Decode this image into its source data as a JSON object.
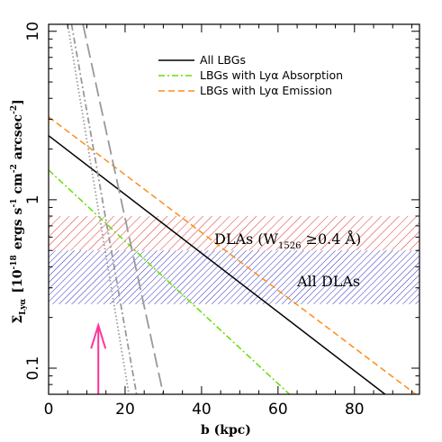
{
  "chart_data": {
    "type": "line",
    "xlabel": "b (kpc)",
    "ylabel": "Σ_Lyα [10⁻¹⁸ ergs s⁻¹ cm⁻² arcsec⁻²]",
    "ylabel_main": "[10",
    "ylabel_exp": "-18",
    "ylabel_units": "ergs s",
    "ylabel_units_exp": "-1",
    "ylabel_cm": "cm",
    "ylabel_cm_exp": "-2",
    "ylabel_arcsec": "arcsec",
    "ylabel_arcsec_exp": "-2",
    "ylabel_close": "]",
    "ylabel_sigma": "Σ",
    "ylabel_sub": "Lyα",
    "xlim": [
      0,
      97
    ],
    "ylim": [
      0.07,
      11
    ],
    "yscale": "log",
    "x_ticks": [
      0,
      20,
      40,
      60,
      80
    ],
    "x_tick_labels": [
      "0",
      "20",
      "40",
      "60",
      "80"
    ],
    "y_ticks": [
      0.1,
      1,
      10
    ],
    "y_tick_labels": [
      "0.1",
      "1",
      "10"
    ],
    "legend_position": "top-right",
    "series": [
      {
        "name": "All LBGs",
        "color": "#000000",
        "style": "solid",
        "x": [
          0,
          88
        ],
        "y": [
          2.4,
          0.07
        ]
      },
      {
        "name": "LBGs with Lyα Absorption",
        "color": "#66dd00",
        "style": "dashdot",
        "x": [
          0,
          63
        ],
        "y": [
          1.5,
          0.07
        ]
      },
      {
        "name": "LBGs with Lyα Emission",
        "color": "#ff8c1a",
        "style": "dashed",
        "x": [
          0,
          96
        ],
        "y": [
          3.1,
          0.07
        ]
      },
      {
        "color": "#999999",
        "style": "dotted",
        "x": [
          5,
          21
        ],
        "y": [
          11,
          0.07
        ]
      },
      {
        "color": "#999999",
        "style": "dashdot",
        "x": [
          6,
          23
        ],
        "y": [
          11,
          0.07
        ]
      },
      {
        "color": "#999999",
        "style": "longdash",
        "x": [
          9,
          30
        ],
        "y": [
          11,
          0.07
        ]
      }
    ],
    "bands": [
      {
        "label_main": "DLAs (W",
        "label_sub": "1526",
        "label_rest": " ≥0.4 Å)",
        "ymin": 0.5,
        "ymax": 0.8,
        "color": "#e03030"
      },
      {
        "label_main": "All DLAs",
        "label_sub": "",
        "label_rest": "",
        "ymin": 0.24,
        "ymax": 0.5,
        "color": "#3030c0"
      }
    ],
    "arrow": {
      "x": 13,
      "y_tip": 0.18,
      "y_tail": 0.07,
      "color": "#ff3399"
    }
  }
}
